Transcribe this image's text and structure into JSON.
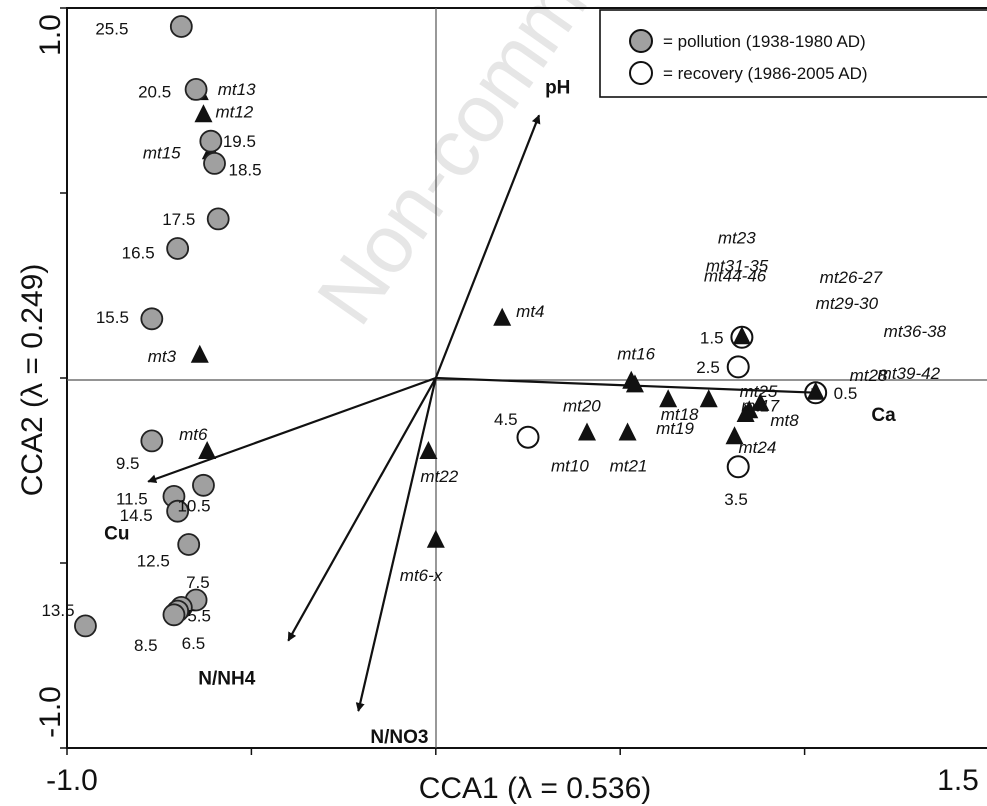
{
  "chart_data": {
    "type": "scatter",
    "xlabel": "CCA1 (λ = 0.536)",
    "ylabel": "CCA2 (λ = 0.249)",
    "xlim": [
      -1.0,
      1.5
    ],
    "ylim": [
      -1.0,
      1.0
    ],
    "x_tick_labels": [
      {
        "value": -1.0,
        "label": "-1.0"
      },
      {
        "value": 1.5,
        "label": "1.5"
      }
    ],
    "y_tick_labels": [
      {
        "value": 1.0,
        "label": "1.0"
      },
      {
        "value": -1.0,
        "label": "-1.0"
      }
    ],
    "watermark": "Non-commercial",
    "legend": {
      "position": "top-right",
      "entries": [
        {
          "marker": "filled-circle",
          "label": "= pollution (1938-1980 AD)",
          "color": "#a0a0a0"
        },
        {
          "marker": "open-circle",
          "label": "= recovery (1986-2005 AD)",
          "color": "#ffffff"
        }
      ]
    },
    "samples_pollution": [
      {
        "label": "25.5",
        "x": -0.69,
        "y": 0.95
      },
      {
        "label": "20.5",
        "x": -0.65,
        "y": 0.78
      },
      {
        "label": "19.5",
        "x": -0.61,
        "y": 0.64
      },
      {
        "label": "18.5",
        "x": -0.6,
        "y": 0.58
      },
      {
        "label": "17.5",
        "x": -0.59,
        "y": 0.43
      },
      {
        "label": "16.5",
        "x": -0.7,
        "y": 0.35
      },
      {
        "label": "15.5",
        "x": -0.77,
        "y": 0.16
      },
      {
        "label": "9.5",
        "x": -0.77,
        "y": -0.17
      },
      {
        "label": "10.5",
        "x": -0.63,
        "y": -0.29
      },
      {
        "label": "11.5",
        "x": -0.71,
        "y": -0.32
      },
      {
        "label": "14.5",
        "x": -0.7,
        "y": -0.36
      },
      {
        "label": "12.5",
        "x": -0.67,
        "y": -0.45
      },
      {
        "label": "7.5",
        "x": -0.65,
        "y": -0.6
      },
      {
        "label": "5.5",
        "x": -0.69,
        "y": -0.62
      },
      {
        "label": "6.5",
        "x": -0.7,
        "y": -0.63
      },
      {
        "label": "8.5",
        "x": -0.71,
        "y": -0.64
      },
      {
        "label": "13.5",
        "x": -0.95,
        "y": -0.67
      }
    ],
    "samples_recovery": [
      {
        "label": "1.5",
        "x": 0.83,
        "y": 0.11
      },
      {
        "label": "2.5",
        "x": 0.82,
        "y": 0.03
      },
      {
        "label": "0.5",
        "x": 1.03,
        "y": -0.04
      },
      {
        "label": "4.5",
        "x": 0.25,
        "y": -0.16
      },
      {
        "label": "3.5",
        "x": 0.82,
        "y": -0.24
      }
    ],
    "species": [
      {
        "label": "mt13",
        "x": -0.64,
        "y": 0.77
      },
      {
        "label": "mt12",
        "x": -0.63,
        "y": 0.71
      },
      {
        "label": "mt15",
        "x": -0.61,
        "y": 0.61
      },
      {
        "label": "mt4",
        "x": 0.18,
        "y": 0.16
      },
      {
        "label": "mt3",
        "x": -0.64,
        "y": 0.06
      },
      {
        "label": "mt16",
        "x": 0.53,
        "y": -0.01
      },
      {
        "label": "mt20",
        "x": 0.54,
        "y": -0.02
      },
      {
        "label": "mt19",
        "x": 0.63,
        "y": -0.06
      },
      {
        "label": "mt18",
        "x": 0.74,
        "y": -0.06
      },
      {
        "label": "mt8",
        "x": 0.88,
        "y": -0.07
      },
      {
        "label": "mt17",
        "x": 0.85,
        "y": -0.09
      },
      {
        "label": "mt25",
        "x": 0.84,
        "y": -0.1
      },
      {
        "label": "mt10",
        "x": 0.41,
        "y": -0.15
      },
      {
        "label": "mt21",
        "x": 0.52,
        "y": -0.15
      },
      {
        "label": "mt24",
        "x": 0.81,
        "y": -0.16
      },
      {
        "label": "mt6",
        "x": -0.62,
        "y": -0.2
      },
      {
        "label": "mt22",
        "x": -0.02,
        "y": -0.2
      },
      {
        "label": "mt6-x",
        "x": 0.0,
        "y": -0.44
      },
      {
        "label": "mt23",
        "x": 0.83,
        "y": 0.11
      },
      {
        "label": "mt31-35",
        "x": 0.83,
        "y": 0.11
      },
      {
        "label": "mt44-46",
        "x": 0.83,
        "y": 0.11
      },
      {
        "label": "mt26-27",
        "x": 1.03,
        "y": -0.04
      },
      {
        "label": "mt29-30",
        "x": 1.03,
        "y": -0.04
      },
      {
        "label": "mt36-38",
        "x": 1.03,
        "y": -0.04
      },
      {
        "label": "mt28",
        "x": 1.03,
        "y": -0.04
      },
      {
        "label": "mt39-42",
        "x": 1.03,
        "y": -0.04
      }
    ],
    "env_vectors": [
      {
        "name": "pH",
        "x": 0.28,
        "y": 0.71
      },
      {
        "name": "Ca",
        "x": 1.04,
        "y": -0.04
      },
      {
        "name": "Cu",
        "x": -0.78,
        "y": -0.28
      },
      {
        "name": "N/NH4",
        "x": -0.4,
        "y": -0.71
      },
      {
        "name": "N/NO3",
        "x": -0.21,
        "y": -0.9
      }
    ]
  }
}
